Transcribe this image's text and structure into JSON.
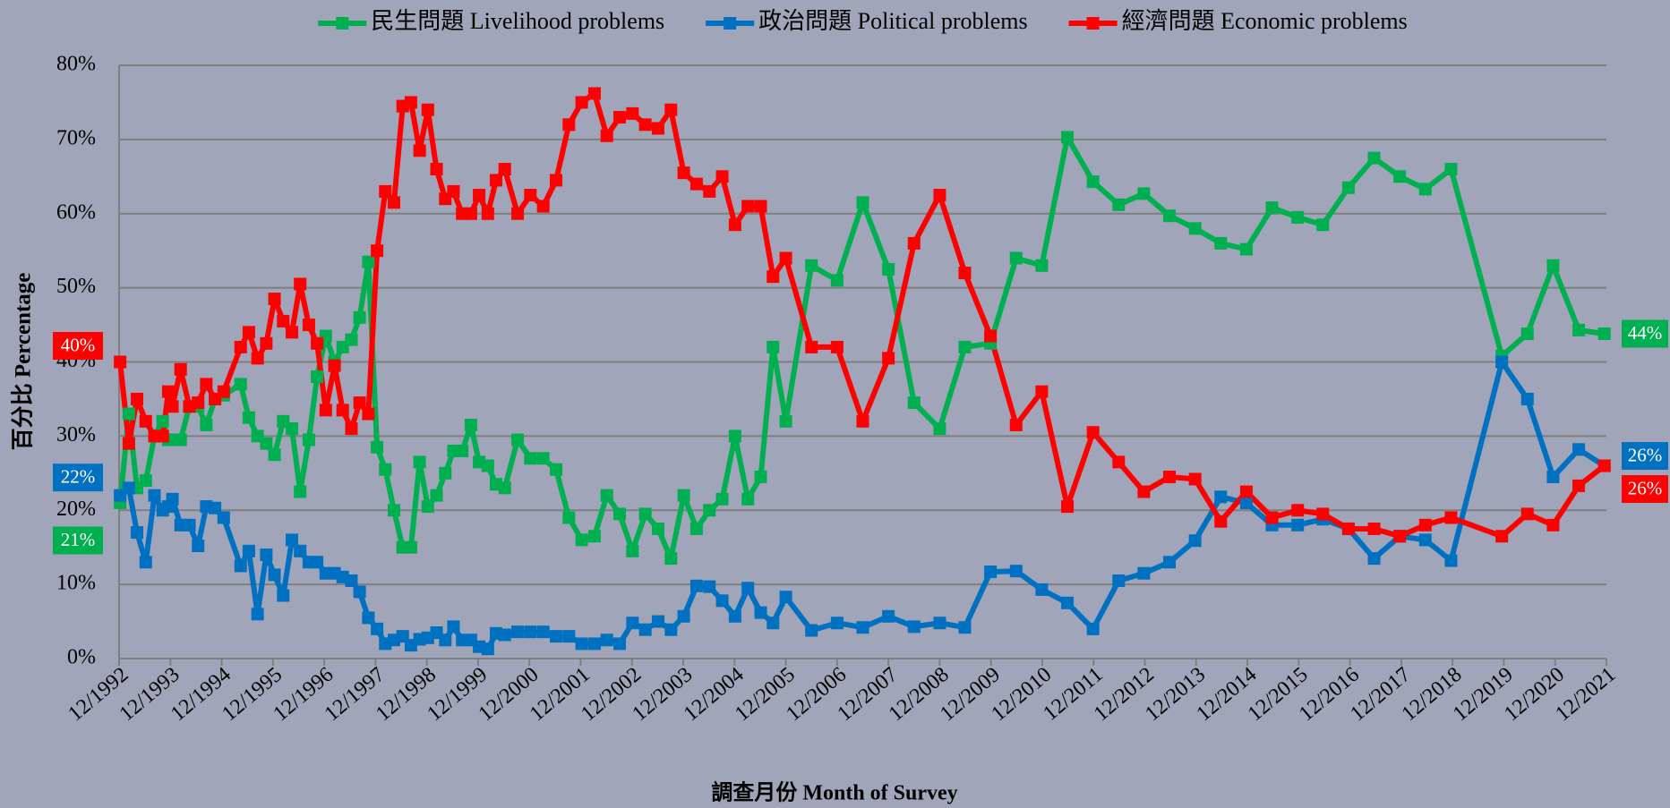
{
  "chart_data": {
    "type": "line",
    "x_title": "調查月份 Month of Survey",
    "y_title": "百分比 Percentage",
    "legend": "top",
    "grid": true,
    "xlim": [
      1992.92,
      2021.92
    ],
    "xticks": [
      {
        "value": 1992.92,
        "label": "12/1992"
      },
      {
        "value": 1993.92,
        "label": "12/1993"
      },
      {
        "value": 1994.92,
        "label": "12/1994"
      },
      {
        "value": 1995.92,
        "label": "12/1995"
      },
      {
        "value": 1996.92,
        "label": "12/1996"
      },
      {
        "value": 1997.92,
        "label": "12/1997"
      },
      {
        "value": 1998.92,
        "label": "12/1998"
      },
      {
        "value": 1999.92,
        "label": "12/1999"
      },
      {
        "value": 2000.92,
        "label": "12/2000"
      },
      {
        "value": 2001.92,
        "label": "12/2001"
      },
      {
        "value": 2002.92,
        "label": "12/2002"
      },
      {
        "value": 2003.92,
        "label": "12/2003"
      },
      {
        "value": 2004.92,
        "label": "12/2004"
      },
      {
        "value": 2005.92,
        "label": "12/2005"
      },
      {
        "value": 2006.92,
        "label": "12/2006"
      },
      {
        "value": 2007.92,
        "label": "12/2007"
      },
      {
        "value": 2008.92,
        "label": "12/2008"
      },
      {
        "value": 2009.92,
        "label": "12/2009"
      },
      {
        "value": 2010.92,
        "label": "12/2010"
      },
      {
        "value": 2011.92,
        "label": "12/2011"
      },
      {
        "value": 2012.92,
        "label": "12/2012"
      },
      {
        "value": 2013.92,
        "label": "12/2013"
      },
      {
        "value": 2014.92,
        "label": "12/2014"
      },
      {
        "value": 2015.92,
        "label": "12/2015"
      },
      {
        "value": 2016.92,
        "label": "12/2016"
      },
      {
        "value": 2017.92,
        "label": "12/2017"
      },
      {
        "value": 2018.92,
        "label": "12/2018"
      },
      {
        "value": 2019.92,
        "label": "12/2019"
      },
      {
        "value": 2020.92,
        "label": "12/2020"
      },
      {
        "value": 2021.92,
        "label": "12/2021"
      }
    ],
    "ylim": [
      0,
      80
    ],
    "yticks": [
      {
        "value": 0,
        "label": "0%"
      },
      {
        "value": 10,
        "label": "10%"
      },
      {
        "value": 20,
        "label": "20%"
      },
      {
        "value": 30,
        "label": "30%"
      },
      {
        "value": 40,
        "label": "40%"
      },
      {
        "value": 50,
        "label": "50%"
      },
      {
        "value": 60,
        "label": "60%"
      },
      {
        "value": 70,
        "label": "70%"
      },
      {
        "value": 80,
        "label": "80%"
      }
    ],
    "x": [
      1992.94,
      1993.11,
      1993.27,
      1993.44,
      1993.61,
      1993.77,
      1993.88,
      1993.96,
      1994.12,
      1994.29,
      1994.46,
      1994.62,
      1994.79,
      1994.96,
      1995.29,
      1995.45,
      1995.62,
      1995.79,
      1995.95,
      1996.12,
      1996.29,
      1996.45,
      1996.62,
      1996.78,
      1996.95,
      1997.12,
      1997.28,
      1997.45,
      1997.61,
      1997.78,
      1997.95,
      1998.11,
      1998.28,
      1998.45,
      1998.61,
      1998.78,
      1998.94,
      1999.11,
      1999.28,
      1999.44,
      1999.61,
      1999.78,
      1999.94,
      2000.11,
      2000.27,
      2000.44,
      2000.69,
      2000.94,
      2001.19,
      2001.44,
      2001.69,
      2001.94,
      2002.19,
      2002.43,
      2002.68,
      2002.93,
      2003.18,
      2003.43,
      2003.68,
      2003.93,
      2004.18,
      2004.43,
      2004.68,
      2004.93,
      2005.18,
      2005.43,
      2005.67,
      2005.92,
      2006.42,
      2006.92,
      2007.42,
      2007.92,
      2008.42,
      2008.92,
      2009.41,
      2009.91,
      2010.41,
      2010.91,
      2011.41,
      2011.91,
      2012.41,
      2012.9,
      2013.4,
      2013.9,
      2014.4,
      2014.9,
      2015.4,
      2015.9,
      2016.39,
      2016.89,
      2017.39,
      2017.89,
      2018.39,
      2018.89,
      2019.88,
      2020.38,
      2020.88,
      2021.38,
      2021.88
    ],
    "series": [
      {
        "name": "民生問題 Livelihood problems",
        "color": "#00b050",
        "values": [
          21,
          33,
          23,
          24,
          30,
          32,
          29.5,
          29.5,
          29.5,
          34,
          34,
          31.5,
          35,
          35.5,
          37,
          32.5,
          30,
          29,
          27.5,
          32,
          31,
          22.5,
          29.5,
          38,
          43.5,
          40,
          42,
          43,
          46,
          53.5,
          28.5,
          25.5,
          20,
          15,
          15,
          26.5,
          20.5,
          22,
          25,
          28,
          28,
          31.5,
          26.5,
          26,
          23.5,
          23,
          29.5,
          27,
          27,
          25.5,
          19,
          16,
          16.5,
          22,
          19.5,
          14.5,
          19.5,
          17.5,
          13.5,
          22,
          17.5,
          20,
          21.5,
          30,
          21.5,
          24.5,
          42,
          32,
          53,
          51,
          61.5,
          52.5,
          34.5,
          31,
          42,
          42.5,
          54,
          53,
          70.3,
          64.3,
          61.2,
          62.7,
          59.7,
          58,
          56,
          55.2,
          60.8,
          59.5,
          58.5,
          63.5,
          67.5,
          65,
          63.3,
          66,
          40.8,
          43.8,
          53,
          44.3,
          43.8
        ],
        "value_labels": [
          "21%",
          null,
          null,
          null,
          null,
          null,
          null,
          null,
          null,
          null,
          null,
          null,
          null,
          null,
          null,
          null,
          null,
          null,
          null,
          null,
          null,
          null,
          null,
          null,
          null,
          null,
          null,
          null,
          null,
          null,
          null,
          null,
          null,
          null,
          null,
          null,
          null,
          null,
          null,
          null,
          null,
          null,
          null,
          null,
          null,
          null,
          null,
          null,
          null,
          null,
          null,
          null,
          null,
          null,
          null,
          null,
          null,
          null,
          null,
          null,
          null,
          null,
          null,
          null,
          null,
          null,
          null,
          null,
          null,
          null,
          null,
          null,
          null,
          null,
          null,
          null,
          null,
          null,
          null,
          null,
          null,
          null,
          null,
          null,
          null,
          null,
          null,
          null,
          null,
          null,
          null,
          null,
          null,
          null,
          null,
          null,
          null,
          null,
          "44%"
        ]
      },
      {
        "name": "政治問題 Political problems",
        "color": "#0070c0",
        "values": [
          22,
          23,
          17,
          13,
          22,
          20,
          20.5,
          21.5,
          18,
          18,
          15.2,
          20.5,
          20.3,
          19,
          12.5,
          14.5,
          6,
          14,
          11.3,
          8.5,
          16,
          14.5,
          13,
          13,
          11.5,
          11.5,
          11,
          10.5,
          9,
          5.5,
          4,
          2,
          2.5,
          3,
          1.8,
          2.6,
          2.8,
          3.5,
          2.5,
          4.3,
          2.5,
          2.5,
          1.6,
          1.3,
          3.4,
          3.2,
          3.6,
          3.6,
          3.6,
          3,
          3,
          2,
          2,
          2.5,
          2,
          4.8,
          3.9,
          5,
          3.9,
          5.7,
          9.8,
          9.7,
          7.8,
          5.7,
          9.5,
          6.2,
          4.8,
          8.3,
          3.8,
          4.8,
          4.2,
          5.7,
          4.3,
          4.8,
          4.2,
          11.7,
          11.8,
          9.3,
          7.5,
          4,
          10.5,
          11.5,
          13,
          15.9,
          21.8,
          21,
          18,
          18,
          18.8,
          17.5,
          13.5,
          16.5,
          16,
          13.2,
          40,
          35,
          24.5,
          28.2,
          26
        ],
        "value_labels": [
          "22%",
          null,
          null,
          null,
          null,
          null,
          null,
          null,
          null,
          null,
          null,
          null,
          null,
          null,
          null,
          null,
          null,
          null,
          null,
          null,
          null,
          null,
          null,
          null,
          null,
          null,
          null,
          null,
          null,
          null,
          null,
          null,
          null,
          null,
          null,
          null,
          null,
          null,
          null,
          null,
          null,
          null,
          null,
          null,
          null,
          null,
          null,
          null,
          null,
          null,
          null,
          null,
          null,
          null,
          null,
          null,
          null,
          null,
          null,
          null,
          null,
          null,
          null,
          null,
          null,
          null,
          null,
          null,
          null,
          null,
          null,
          null,
          null,
          null,
          null,
          null,
          null,
          null,
          null,
          null,
          null,
          null,
          null,
          null,
          null,
          null,
          null,
          null,
          null,
          null,
          null,
          null,
          null,
          null,
          null,
          null,
          null,
          null,
          "26%"
        ]
      },
      {
        "name": "經濟問題 Economic problems",
        "color": "#ff0000",
        "values": [
          40,
          29,
          35,
          32,
          30,
          30,
          36,
          34,
          39,
          34,
          34.5,
          37,
          35,
          36,
          42,
          44,
          40.5,
          42.5,
          48.5,
          45.5,
          44,
          50.5,
          45,
          42.5,
          33.5,
          39.5,
          33.5,
          31,
          34.5,
          33,
          55,
          63,
          61.5,
          74.5,
          75,
          68.5,
          74,
          66,
          62,
          63,
          60,
          60,
          62.5,
          60,
          64.5,
          66,
          60,
          62.5,
          61,
          64.5,
          72,
          75,
          76.2,
          70.5,
          73,
          73.5,
          72,
          71.5,
          74,
          65.5,
          64,
          63,
          65,
          58.5,
          61,
          61,
          51.5,
          54,
          42,
          42,
          32,
          40.5,
          56,
          62.5,
          52,
          43.5,
          31.5,
          36,
          20.5,
          30.5,
          26.5,
          22.5,
          24.5,
          24.2,
          18.5,
          22.5,
          19,
          20,
          19.5,
          17.5,
          17.5,
          16.5,
          18,
          19,
          16.5,
          19.5,
          18,
          23.3,
          26
        ],
        "value_labels": [
          "40%",
          null,
          null,
          null,
          null,
          null,
          null,
          null,
          null,
          null,
          null,
          null,
          null,
          null,
          null,
          null,
          null,
          null,
          null,
          null,
          null,
          null,
          null,
          null,
          null,
          null,
          null,
          null,
          null,
          null,
          null,
          null,
          null,
          null,
          null,
          null,
          null,
          null,
          null,
          null,
          null,
          null,
          null,
          null,
          null,
          null,
          null,
          null,
          null,
          null,
          null,
          null,
          null,
          null,
          null,
          null,
          null,
          null,
          null,
          null,
          null,
          null,
          null,
          null,
          null,
          null,
          null,
          null,
          null,
          null,
          null,
          null,
          null,
          null,
          null,
          null,
          null,
          null,
          null,
          null,
          null,
          null,
          null,
          null,
          null,
          null,
          null,
          null,
          null,
          null,
          null,
          null,
          null,
          null,
          null,
          null,
          null,
          null,
          "26%"
        ]
      }
    ]
  }
}
